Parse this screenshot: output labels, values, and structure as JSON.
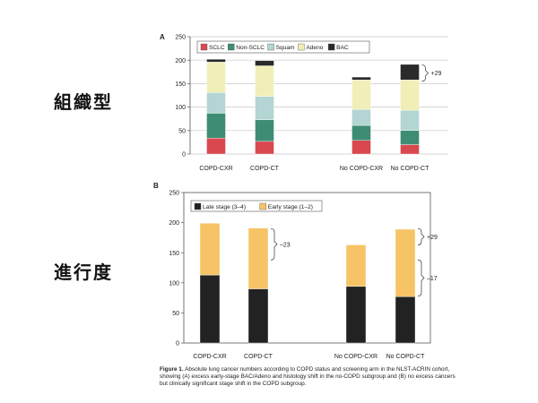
{
  "side_labels": {
    "panel_a": "組織型",
    "panel_b": "進行度"
  },
  "caption": {
    "label": "Figure 1.",
    "text": "Absolute lung cancer numbers according to COPD status and screening arm in the NLST-ACRIN cohort, showing (A) excess early-stage BAC/Adeno and histology shift in the no-COPD subgroup and (B) no excess cancers but clinically significant stage shift in the COPD subgroup."
  },
  "chart_data": [
    {
      "type": "bar",
      "stacked": true,
      "panel": "A",
      "categories": [
        "COPD-CXR",
        "COPD-CT",
        "No COPD-CXR",
        "No COPD-CT"
      ],
      "ylim": [
        0,
        250
      ],
      "yticks": [
        0,
        50,
        100,
        150,
        200,
        250
      ],
      "grid": true,
      "legend": "top-left",
      "series": [
        {
          "name": "SCLC",
          "color": "#d9474f",
          "values": [
            34,
            27,
            29,
            20
          ]
        },
        {
          "name": "Non-SCLC",
          "color": "#3e8c73",
          "values": [
            53,
            46,
            32,
            30
          ]
        },
        {
          "name": "Squam",
          "color": "#b3d5d3",
          "values": [
            44,
            50,
            34,
            43
          ]
        },
        {
          "name": "Adeno",
          "color": "#f1efb8",
          "values": [
            65,
            65,
            63,
            65
          ]
        },
        {
          "name": "BAC",
          "color": "#2a2a2a",
          "values": [
            6,
            11,
            6,
            33
          ]
        }
      ],
      "annotations": [
        {
          "category": "No COPD-CT",
          "text": "+29"
        }
      ]
    },
    {
      "type": "bar",
      "stacked": true,
      "panel": "B",
      "categories": [
        "COPD-CXR",
        "COPD-CT",
        "No COPD-CXR",
        "No COPD-CT"
      ],
      "ylim": [
        0,
        250
      ],
      "yticks": [
        0,
        50,
        100,
        150,
        200,
        250
      ],
      "grid": false,
      "legend": "top-left",
      "series": [
        {
          "name": "Late stage (3–4)",
          "color": "#222222",
          "values": [
            113,
            90,
            94,
            77
          ]
        },
        {
          "name": "Early stage (1–2)",
          "color": "#f6c466",
          "values": [
            86,
            101,
            69,
            112
          ]
        }
      ],
      "annotations": [
        {
          "category": "COPD-CT",
          "text": "–23"
        },
        {
          "category": "No COPD-CT",
          "text": "+29"
        },
        {
          "category": "No COPD-CT",
          "text": "–17"
        }
      ]
    }
  ]
}
